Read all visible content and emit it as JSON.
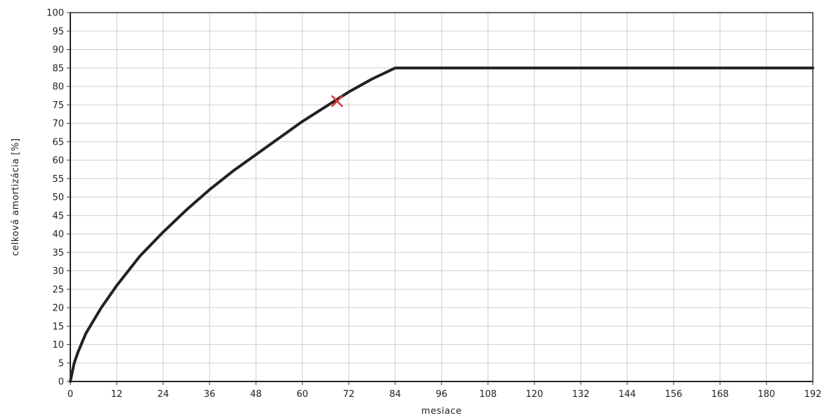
{
  "chart_data": {
    "type": "line",
    "title": "",
    "xlabel": "mesiace",
    "ylabel": "celková amortizácia [%]",
    "xlim": [
      0,
      192
    ],
    "ylim": [
      0,
      100
    ],
    "x_ticks": [
      0,
      12,
      24,
      36,
      48,
      60,
      72,
      84,
      96,
      108,
      120,
      132,
      144,
      156,
      168,
      180,
      192
    ],
    "y_ticks": [
      0,
      5,
      10,
      15,
      20,
      25,
      30,
      35,
      40,
      45,
      50,
      55,
      60,
      65,
      70,
      75,
      80,
      85,
      90,
      95,
      100
    ],
    "grid": true,
    "legend": "none",
    "series": [
      {
        "color": "#222222",
        "x": [
          0,
          1,
          2,
          4,
          6,
          8,
          12,
          18,
          24,
          30,
          36,
          42,
          48,
          54,
          60,
          66,
          72,
          78,
          84,
          96,
          108,
          120,
          132,
          144,
          156,
          168,
          180,
          192
        ],
        "y": [
          0,
          5,
          8,
          13,
          16.5,
          20,
          26,
          34,
          40.5,
          46.5,
          52,
          57,
          61.5,
          66,
          70.5,
          74.5,
          78.5,
          82,
          85,
          85,
          85,
          85,
          85,
          85,
          85,
          85,
          85,
          85
        ]
      }
    ],
    "marker": {
      "shape": "x",
      "color": "#d9363e",
      "x": 69,
      "y": 76
    }
  }
}
